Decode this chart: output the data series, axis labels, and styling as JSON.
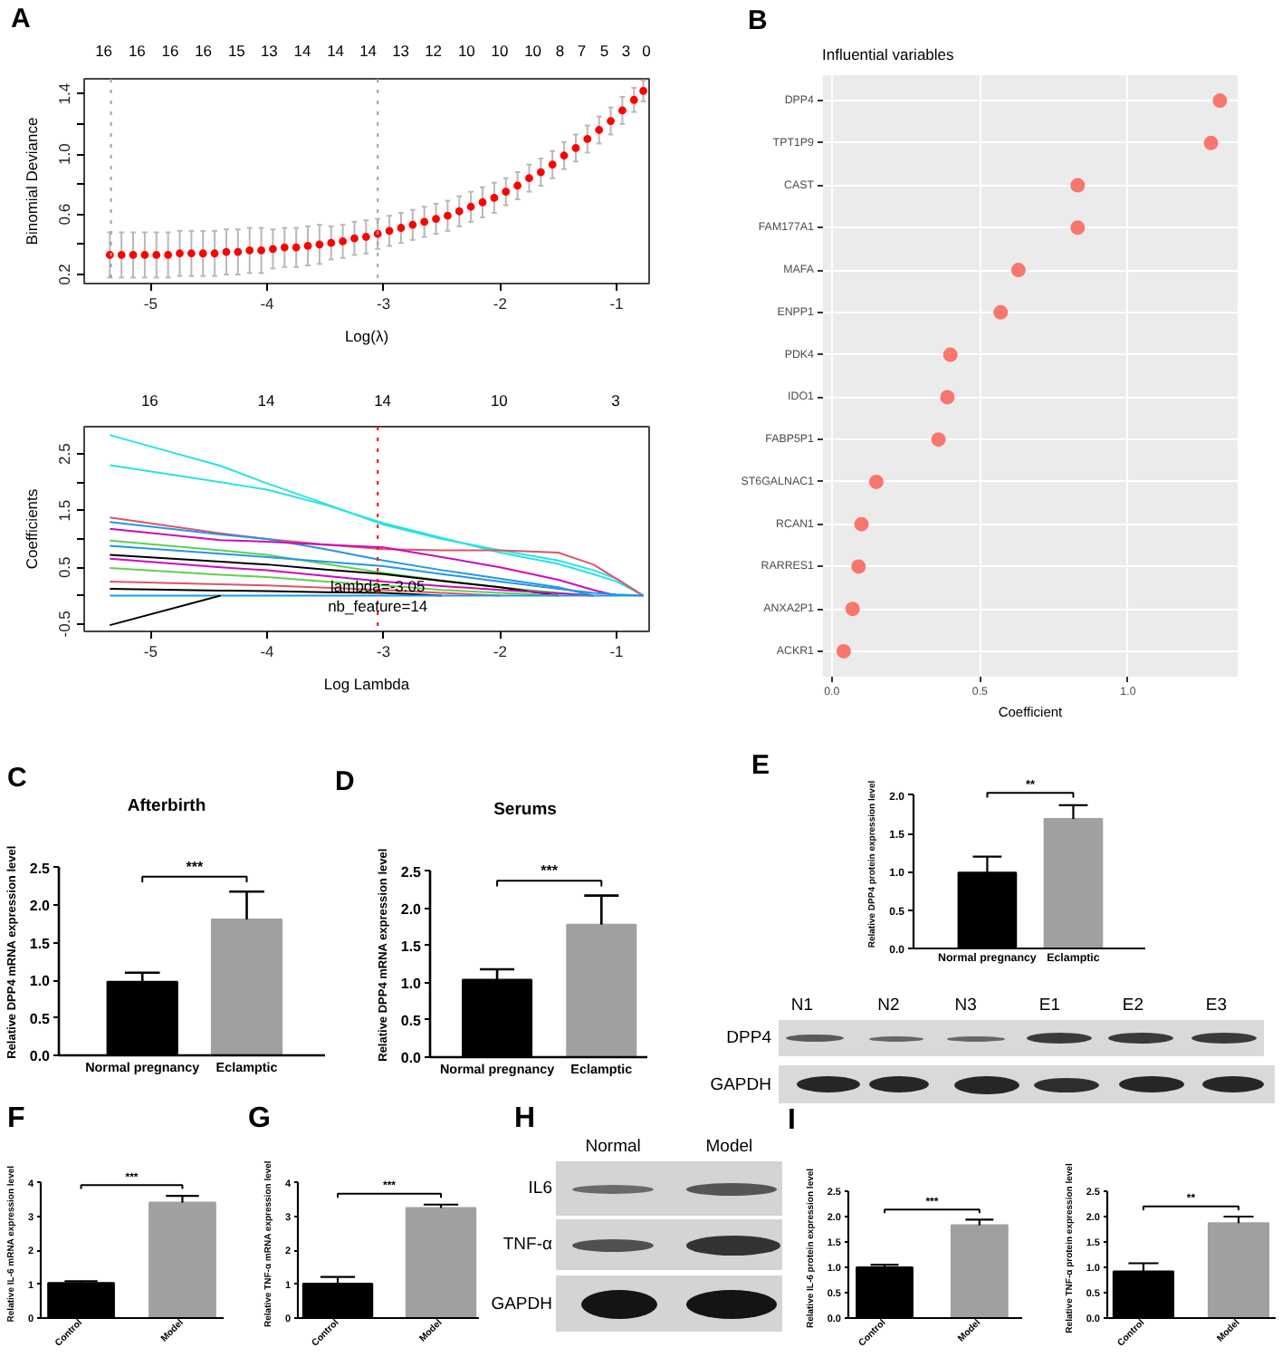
{
  "chart_data": [
    {
      "type": "scatter",
      "annotations": [
        "A",
        "16",
        "16",
        "16",
        "16",
        "15",
        "13",
        "14",
        "14",
        "14",
        "13",
        "12",
        "10",
        "10",
        "10",
        "8",
        "7",
        "5",
        "3",
        "0"
      ],
      "xlabel": "Log(λ)",
      "ylabel": "Binomial Deviance",
      "color": "#ff0000",
      "marker": "circle",
      "xlim": [
        -5.57,
        -0.72
      ],
      "ylim": [
        0.14,
        1.5
      ],
      "xticks": [
        -5,
        -4,
        -3,
        -2,
        -1
      ],
      "yticks": [
        0.2,
        {
          "value": 0.4,
          "label": null
        },
        0.6,
        {
          "value": 0.8,
          "label": null
        },
        {
          "value": 1,
          "label": "1.0"
        },
        {
          "value": 1.2,
          "label": null
        },
        1.4
      ],
      "ref_lines": [
        {
          "axis": "x",
          "value": -5.34,
          "color": "#a0a0a0",
          "line_style": "dotted"
        },
        {
          "axis": "x",
          "value": -3.05,
          "color": "#a0a0a0",
          "line_style": "dotted"
        }
      ],
      "x": [
        -5.35,
        -5.25,
        -5.15,
        -5.05,
        -4.95,
        -4.85,
        -4.75,
        -4.65,
        -4.55,
        -4.45,
        -4.35,
        -4.25,
        -4.15,
        -4.05,
        -3.95,
        -3.85,
        -3.75,
        -3.65,
        -3.55,
        -3.45,
        -3.35,
        -3.25,
        -3.15,
        -3.05,
        -2.95,
        -2.85,
        -2.75,
        -2.65,
        -2.55,
        -2.45,
        -2.35,
        -2.25,
        -2.15,
        -2.05,
        -1.95,
        -1.85,
        -1.75,
        -1.65,
        -1.55,
        -1.45,
        -1.35,
        -1.25,
        -1.15,
        -1.05,
        -0.95,
        -0.85,
        -0.77
      ],
      "values": [
        0.33,
        0.33,
        0.33,
        0.33,
        0.33,
        0.33,
        0.34,
        0.34,
        0.34,
        0.34,
        0.35,
        0.35,
        0.36,
        0.36,
        0.37,
        0.38,
        0.38,
        0.39,
        0.4,
        0.41,
        0.42,
        0.44,
        0.45,
        0.47,
        0.49,
        0.51,
        0.53,
        0.55,
        0.57,
        0.59,
        0.62,
        0.65,
        0.68,
        0.71,
        0.75,
        0.79,
        0.84,
        0.88,
        0.93,
        0.99,
        1.04,
        1.1,
        1.16,
        1.22,
        1.29,
        1.36,
        1.42
      ],
      "errors": [
        0.15,
        0.15,
        0.15,
        0.15,
        0.15,
        0.15,
        0.15,
        0.15,
        0.15,
        0.15,
        0.15,
        0.15,
        0.15,
        0.15,
        0.13,
        0.13,
        0.13,
        0.13,
        0.13,
        0.11,
        0.11,
        0.11,
        0.11,
        0.1,
        0.1,
        0.1,
        0.1,
        0.1,
        0.1,
        0.1,
        0.1,
        0.1,
        0.1,
        0.1,
        0.09,
        0.09,
        0.09,
        0.09,
        0.09,
        0.09,
        0.09,
        0.09,
        0.09,
        0.09,
        0.09,
        0.08,
        0.07
      ]
    },
    {
      "type": "line",
      "xlabel": "Log Lambda",
      "ylabel": "Coefficients",
      "xlim": [
        -5.57,
        -0.72
      ],
      "ylim": [
        -0.63,
        2.98
      ],
      "xticks": [
        -5,
        -4,
        -3,
        -2,
        -1
      ],
      "yticks": [
        -0.5,
        {
          "value": 0,
          "label": null
        },
        0.5,
        {
          "value": 1,
          "label": null
        },
        1.5,
        {
          "value": 2,
          "label": null
        },
        2.5
      ],
      "ref_lines": [
        {
          "axis": "x",
          "value": -3.05,
          "color": "#ff0000",
          "line_style": "dotted"
        }
      ],
      "annotations": [
        "16",
        "14",
        "14",
        "10",
        "3",
        {
          "text": "lambda=-3.05",
          "x": -3.05,
          "y": 0.17
        },
        {
          "text": "nb_feature=14",
          "x": -3.05,
          "y": -0.19
        }
      ],
      "x": [
        -5.35,
        -4.4,
        -4.0,
        -3.5,
        -3.0,
        -2.5,
        -2.0,
        -1.5,
        -1.2,
        -1.0,
        -0.77
      ],
      "series": [
        {
          "color": "#28e2e5",
          "values": [
            2.83,
            2.29,
            1.98,
            1.62,
            1.25,
            1.0,
            0.8,
            0.62,
            0.45,
            0.3,
            0
          ]
        },
        {
          "color": "#28e2e5",
          "values": [
            2.3,
            2.0,
            1.87,
            1.6,
            1.28,
            1.02,
            0.76,
            0.56,
            0.38,
            0.25,
            0
          ]
        },
        {
          "color": "#df536b",
          "values": [
            1.38,
            1.1,
            1.0,
            0.9,
            0.82,
            0.8,
            0.8,
            0.76,
            0.55,
            0.3,
            0
          ]
        },
        {
          "color": "#2297e6",
          "values": [
            1.3,
            1.08,
            1.0,
            0.82,
            0.62,
            0.45,
            0.3,
            0.15,
            0,
            null,
            null
          ]
        },
        {
          "color": "#cd0bbc",
          "values": [
            1.18,
            0.98,
            0.95,
            0.9,
            0.85,
            0.68,
            0.5,
            0.28,
            0.1,
            0,
            null
          ]
        },
        {
          "color": "#61d04f",
          "values": [
            0.97,
            0.8,
            0.72,
            0.56,
            0.4,
            0.27,
            0.15,
            0.05,
            0,
            null,
            null
          ]
        },
        {
          "color": "#2297e6",
          "values": [
            0.88,
            0.74,
            0.68,
            0.6,
            0.52,
            0.38,
            0.25,
            0.12,
            0.05,
            0.02,
            0
          ]
        },
        {
          "color": "#000000",
          "values": [
            0.72,
            0.6,
            0.55,
            0.46,
            0.38,
            0.26,
            0.15,
            0,
            null,
            null,
            null
          ]
        },
        {
          "color": "#cd0bbc",
          "values": [
            0.65,
            0.5,
            0.45,
            0.35,
            0.25,
            0.17,
            0.1,
            0.04,
            0,
            null,
            null
          ]
        },
        {
          "color": "#61d04f",
          "values": [
            0.49,
            0.37,
            0.33,
            0.25,
            0.18,
            0.1,
            0.05,
            0,
            null,
            null,
            null
          ]
        },
        {
          "color": "#df536b",
          "values": [
            0.25,
            0.2,
            0.18,
            0.14,
            0.1,
            0.05,
            0,
            null,
            null,
            null,
            null
          ]
        },
        {
          "color": "#000000",
          "values": [
            0.12,
            0.09,
            0.08,
            0.06,
            0.05,
            0,
            null,
            null,
            null,
            null,
            null
          ]
        },
        {
          "color": "#2297e6",
          "values": [
            0,
            0,
            0,
            0,
            0,
            0,
            0,
            0,
            0,
            0,
            0
          ]
        },
        {
          "color": "#000000",
          "values": [
            -0.52,
            0,
            null,
            null,
            null,
            null,
            null,
            null,
            null,
            null,
            null
          ]
        }
      ]
    },
    {
      "type": "scatter",
      "orientation": "horizontal",
      "annotations": [
        "B"
      ],
      "title": "Influential variables",
      "xlabel": "Coefficient",
      "categories": [
        "DPP4",
        "TPT1P9",
        "CAST",
        "FAM177A1",
        "MAFA",
        "ENPP1",
        "PDK4",
        "IDO1",
        "FABP5P1",
        "ST6GALNAC1",
        "RCAN1",
        "RARRES1",
        "ANXA2P1",
        "ACKR1"
      ],
      "values": [
        1.31,
        1.28,
        0.83,
        0.83,
        0.63,
        0.57,
        0.4,
        0.39,
        0.36,
        0.15,
        0.1,
        0.09,
        0.07,
        0.04
      ],
      "color": "#f8766d",
      "marker": "circle",
      "xlim": [
        -0.03,
        1.37
      ],
      "xticks": [
        {
          "value": 0,
          "label": "0.0"
        },
        0.5,
        {
          "value": 1,
          "label": "1.0"
        }
      ],
      "grid": true
    },
    {
      "type": "bar",
      "annotations": [
        "C",
        "***"
      ],
      "title": "Afterbirth",
      "ylabel": "Relative DPP4 mRNA expression level",
      "categories": [
        "Normal pregnancy",
        "Eclamptic"
      ],
      "values": [
        0.98,
        1.81
      ],
      "colors": [
        "#000000",
        "#a0a0a0"
      ],
      "errors": [
        [
          0.98,
          1.1
        ],
        [
          1.81,
          2.18
        ]
      ],
      "ylim": [
        0,
        2.5
      ],
      "yticks": [
        {
          "value": 0,
          "label": "0.0"
        },
        0.5,
        {
          "value": 1,
          "label": "1.0"
        },
        1.5,
        {
          "value": 2,
          "label": "2.0"
        },
        2.5
      ]
    },
    {
      "type": "bar",
      "annotations": [
        "D",
        "***"
      ],
      "title": "Serums",
      "ylabel": "Relative DPP4 mRNA expression level",
      "categories": [
        "Normal pregnancy",
        "Eclamptic"
      ],
      "values": [
        1.04,
        1.78
      ],
      "colors": [
        "#000000",
        "#a0a0a0"
      ],
      "errors": [
        [
          1.04,
          1.18
        ],
        [
          1.78,
          2.17
        ]
      ],
      "ylim": [
        0,
        2.5
      ],
      "yticks": [
        {
          "value": 0,
          "label": "0.0"
        },
        0.5,
        {
          "value": 1,
          "label": "1.0"
        },
        1.5,
        {
          "value": 2,
          "label": "2.0"
        },
        2.5
      ]
    },
    {
      "type": "bar",
      "annotations": [
        "E",
        "**"
      ],
      "ylabel": "Relative DPP4 protein expression level",
      "categories": [
        "Normal pregnancy",
        "Eclamptic"
      ],
      "values": [
        0.99,
        1.69
      ],
      "colors": [
        "#000000",
        "#a0a0a0"
      ],
      "errors": [
        [
          0.99,
          1.2
        ],
        [
          1.69,
          1.87
        ]
      ],
      "ylim": [
        0,
        2
      ],
      "yticks": [
        {
          "value": 0,
          "label": "0.0"
        },
        0.5,
        {
          "value": 1,
          "label": "1.0"
        },
        1.5,
        {
          "value": 2,
          "label": "2.0"
        }
      ]
    },
    {
      "type": "other",
      "annotations": [
        "N1",
        "N2",
        "N3",
        "E1",
        "E2",
        "E3",
        "DPP4",
        "GAPDH"
      ]
    },
    {
      "type": "bar",
      "annotations": [
        "F",
        "***"
      ],
      "ylabel": "Relative IL-6 mRNA expression level",
      "categories": [
        "Control",
        "Model"
      ],
      "values": [
        1.04,
        3.42
      ],
      "colors": [
        "#000000",
        "#a0a0a0"
      ],
      "errors": [
        [
          1.04,
          1.09
        ],
        [
          3.42,
          3.62
        ]
      ],
      "ylim": [
        0,
        4
      ],
      "yticks": [
        0,
        1,
        2,
        3,
        4
      ]
    },
    {
      "type": "bar",
      "annotations": [
        "G",
        "***"
      ],
      "ylabel": "Relative TNF-α mRNA expression level",
      "categories": [
        "Control",
        "Model"
      ],
      "values": [
        1.02,
        3.26
      ],
      "colors": [
        "#000000",
        "#a0a0a0"
      ],
      "errors": [
        [
          1.02,
          1.22
        ],
        [
          3.26,
          3.36
        ]
      ],
      "ylim": [
        0,
        4
      ],
      "yticks": [
        0,
        1,
        2,
        3,
        4
      ]
    },
    {
      "type": "other",
      "annotations": [
        "H",
        "Normal",
        "Model",
        "IL6",
        "TNF-α",
        "GAPDH"
      ]
    },
    {
      "type": "bar",
      "annotations": [
        "I",
        "***"
      ],
      "ylabel": "Relative IL-6 protein expression level",
      "categories": [
        "Control",
        "Model"
      ],
      "values": [
        1.0,
        1.83
      ],
      "colors": [
        "#000000",
        "#a0a0a0"
      ],
      "errors": [
        [
          1.0,
          1.05
        ],
        [
          1.83,
          1.94
        ]
      ],
      "ylim": [
        0,
        2.5
      ],
      "yticks": [
        {
          "value": 0,
          "label": "0.0"
        },
        0.5,
        {
          "value": 1,
          "label": "1.0"
        },
        1.5,
        {
          "value": 2,
          "label": "2.0"
        },
        2.5
      ]
    },
    {
      "type": "bar",
      "annotations": [
        "**"
      ],
      "ylabel": "Relative TNF-α protein expression level",
      "categories": [
        "Control",
        "Model"
      ],
      "values": [
        0.92,
        1.87
      ],
      "colors": [
        "#000000",
        "#a0a0a0"
      ],
      "errors": [
        [
          0.92,
          1.08
        ],
        [
          1.87,
          2.0
        ]
      ],
      "ylim": [
        0,
        2.5
      ],
      "yticks": [
        {
          "value": 0,
          "label": "0.0"
        },
        0.5,
        {
          "value": 1,
          "label": "1.0"
        },
        1.5,
        {
          "value": 2,
          "label": "2.0"
        },
        2.5
      ]
    }
  ]
}
